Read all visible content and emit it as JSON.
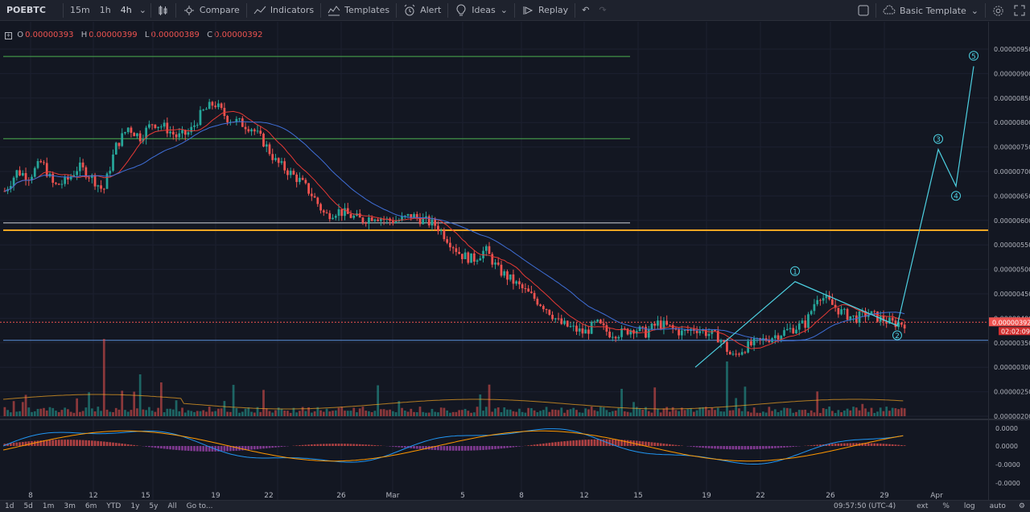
{
  "toolbar": {
    "symbol": "POEBTC",
    "intervals": [
      "15m",
      "1h",
      "4h"
    ],
    "active_interval": "4h",
    "compare": "Compare",
    "indicators": "Indicators",
    "templates": "Templates",
    "alert": "Alert",
    "ideas": "Ideas",
    "replay": "Replay",
    "basic_template": "Basic Template"
  },
  "ohlc": {
    "o_label": "O",
    "o": "0.00000393",
    "h_label": "H",
    "h": "0.00000399",
    "l_label": "L",
    "l": "0.00000389",
    "c_label": "C",
    "c": "0.00000392"
  },
  "price_axis": {
    "ticks": [
      "0.00000950",
      "0.00000900",
      "0.00000850",
      "0.00000800",
      "0.00000750",
      "0.00000700",
      "0.00000650",
      "0.00000600",
      "0.00000550",
      "0.00000500",
      "0.00000450",
      "0.00000400",
      "0.00000350",
      "0.00000300",
      "0.00000250",
      "0.00000200"
    ],
    "current_price": "0.00000392",
    "countdown": "02:02:09"
  },
  "macd_axis": {
    "ticks": [
      "0.0000",
      "0.0000",
      "-0.0000",
      "-0.0000"
    ]
  },
  "time_axis": {
    "labels": [
      "8",
      "12",
      "15",
      "19",
      "22",
      "26",
      "Mar",
      "5",
      "8",
      "12",
      "15",
      "19",
      "22",
      "26",
      "29",
      "Apr"
    ]
  },
  "wave_labels": [
    "1",
    "2",
    "3",
    "4",
    "5"
  ],
  "bottom": {
    "ranges": [
      "1d",
      "5d",
      "1m",
      "3m",
      "6m",
      "YTD",
      "1y",
      "5y",
      "All"
    ],
    "goto": "Go to...",
    "time": "09:57:50 (UTC-4)",
    "ext": "ext",
    "percent": "%",
    "log": "log",
    "auto": "auto"
  },
  "colors": {
    "up": "#26a69a",
    "down": "#ef5350",
    "ma_red": "#e53935",
    "ma_blue": "#3f6fd8",
    "wave": "#4dd0e1",
    "support_orange": "#f5a623",
    "level_green": "#4caf50",
    "level_blue": "#5b8fd9",
    "level_white": "#d1d4dc"
  },
  "chart_data": {
    "type": "candlestick",
    "symbol": "POEBTC",
    "interval": "4h",
    "ylim": [
      2e-06,
      9.7e-06
    ],
    "price_path": [
      6.6e-06,
      7e-06,
      6.9e-06,
      7.2e-06,
      6.7e-06,
      6.8e-06,
      7.1e-06,
      6.9e-06,
      6.6e-06,
      7.5e-06,
      7.9e-06,
      7.7e-06,
      8e-06,
      7.9e-06,
      7.7e-06,
      7.8e-06,
      8.2e-06,
      8.4e-06,
      8.1e-06,
      8e-06,
      7.9e-06,
      7.6e-06,
      7.2e-06,
      7e-06,
      6.8e-06,
      6.5e-06,
      6.1e-06,
      6.2e-06,
      6.1e-06,
      6e-06,
      6.1e-06,
      6e-06,
      6e-06,
      6.1e-06,
      6e-06,
      5.9e-06,
      5.6e-06,
      5.3e-06,
      5.2e-06,
      5.4e-06,
      5e-06,
      4.8e-06,
      4.6e-06,
      4.4e-06,
      4.2e-06,
      3.9e-06,
      3.8e-06,
      3.7e-06,
      3.9e-06,
      3.7e-06,
      3.7e-06,
      3.8e-06,
      3.7e-06,
      3.9e-06,
      3.8e-06,
      3.7e-06,
      3.8e-06,
      3.7e-06,
      3.6e-06,
      3.2e-06,
      3.4e-06,
      3.5e-06,
      3.6e-06,
      3.7e-06,
      3.8e-06,
      3.9e-06,
      4.5e-06,
      4.3e-06,
      4.1e-06,
      4e-06,
      4.1e-06,
      4e-06,
      3.9e-06,
      3.9e-06
    ],
    "horizontal_levels": [
      {
        "price": 9.35e-06,
        "color": "green"
      },
      {
        "price": 7.67e-06,
        "color": "green"
      },
      {
        "price": 5.95e-06,
        "color": "white"
      },
      {
        "price": 5.8e-06,
        "color": "orange"
      },
      {
        "price": 3.55e-06,
        "color": "blue"
      }
    ],
    "elliott_wave": [
      {
        "label": "1",
        "price": 4.75e-06
      },
      {
        "label": "2",
        "price": 3.85e-06
      },
      {
        "label": "3",
        "price": 7.45e-06
      },
      {
        "label": "4",
        "price": 6.7e-06
      },
      {
        "label": "5",
        "price": 9.15e-06
      }
    ]
  }
}
